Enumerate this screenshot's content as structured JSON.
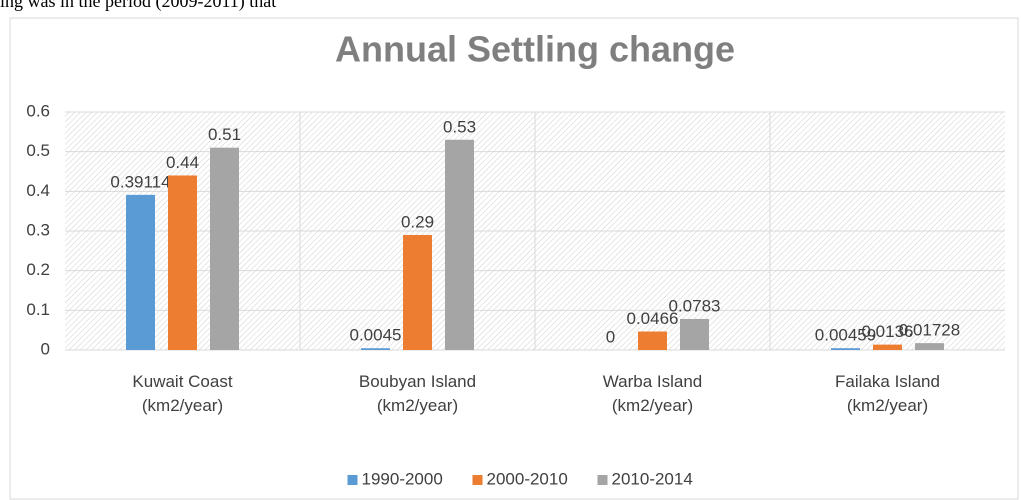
{
  "text_above": "ing was in the period (2009-2011) that",
  "chart_data": {
    "type": "bar",
    "title": "Annual Settling change",
    "categories": [
      "Kuwait Coast (km2/year)",
      "Boubyan Island (km2/year)",
      "Warba Island (km2/year)",
      "Failaka Island (km2/year)"
    ],
    "series": [
      {
        "name": "1990-2000",
        "color": "#5b9bd5",
        "values": [
          0.39114,
          0.0045,
          0,
          0.00459
        ]
      },
      {
        "name": "2000-2010",
        "color": "#ed7d31",
        "values": [
          0.44,
          0.29,
          0.0466,
          0.0136
        ]
      },
      {
        "name": "2010-2014",
        "color": "#a5a5a5",
        "values": [
          0.51,
          0.53,
          0.0783,
          0.01728
        ]
      }
    ],
    "ylim": [
      0,
      0.6
    ],
    "yticks": [
      0,
      0.1,
      0.2,
      0.3,
      0.4,
      0.5,
      0.6
    ],
    "grid": true,
    "legend": "bottom"
  }
}
